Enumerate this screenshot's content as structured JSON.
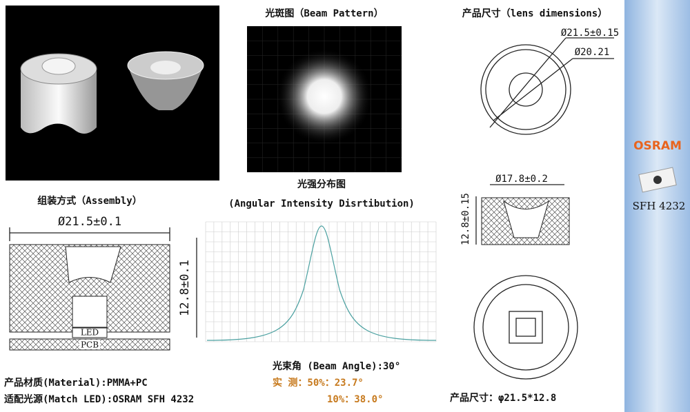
{
  "beam_pattern": {
    "title": "光斑图（Beam Pattern）"
  },
  "lens_dimensions": {
    "title": "产品尺寸（lens dimensions）",
    "outer_diameter": "Ø21.5±0.15",
    "inner_diameter": "Ø20.21",
    "top_diameter": "Ø17.8±0.2",
    "height": "12.8±0.15"
  },
  "led": {
    "brand": "OSRAM",
    "model": "SFH 4232"
  },
  "intensity": {
    "title": "光强分布图",
    "subtitle": "(Angular Intensity Disrtibution)"
  },
  "assembly": {
    "title": "组装方式（Assembly）",
    "diameter": "Ø21.5±0.1",
    "height": "12.8±0.1",
    "led_label": "LED",
    "pcb_label": "PCB"
  },
  "specs": {
    "beam_angle": "光束角 (Beam Angle):30°",
    "measured_50": "实  测：50%：23.7°",
    "measured_10": "10%：38.0°",
    "material": "产品材质(Material):PMMA+PC",
    "match_led": "适配光源(Match LED):OSRAM SFH 4232",
    "size": "产品尺寸：φ21.5*12.8"
  }
}
